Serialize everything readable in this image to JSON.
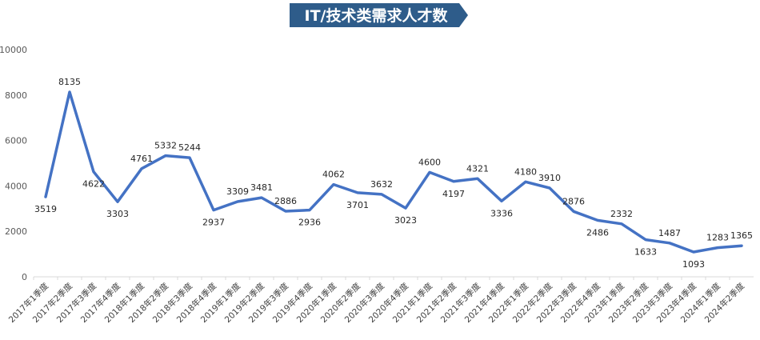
{
  "chart_data": {
    "type": "line",
    "title": "IT/技术类需求人才数",
    "xlabel": "",
    "ylabel": "",
    "ylim": [
      0,
      10000
    ],
    "yticks": [
      0,
      2000,
      4000,
      6000,
      8000,
      10000
    ],
    "grid": false,
    "legend": "none",
    "categories": [
      "2017年1季度",
      "2017年2季度",
      "2017年3季度",
      "2017年4季度",
      "2018年1季度",
      "2018年2季度",
      "2018年3季度",
      "2018年4季度",
      "2019年1季度",
      "2019年2季度",
      "2019年3季度",
      "2019年4季度",
      "2020年1季度",
      "2020年2季度",
      "2020年3季度",
      "2020年4季度",
      "2021年1季度",
      "2021年2季度",
      "2021年3季度",
      "2021年4季度",
      "2022年1季度",
      "2022年2季度",
      "2022年3季度",
      "2022年4季度",
      "2023年1季度",
      "2023年2季度",
      "2023年3季度",
      "2023年4季度",
      "2024年1季度",
      "2024年2季度"
    ],
    "series": [
      {
        "values": [
          3519,
          8135,
          4622,
          3303,
          4761,
          5332,
          5244,
          2937,
          3309,
          3481,
          2886,
          2936,
          4062,
          3701,
          3632,
          3023,
          4600,
          4197,
          4321,
          3336,
          4180,
          3910,
          2876,
          2486,
          2332,
          1633,
          1487,
          1093,
          1283,
          1365
        ],
        "label_position": [
          "below",
          "above",
          "below",
          "below",
          "above",
          "above",
          "above",
          "below",
          "above",
          "above",
          "above",
          "below",
          "above",
          "below",
          "above",
          "below",
          "above",
          "below",
          "above",
          "below",
          "above",
          "above",
          "above",
          "below",
          "above",
          "below",
          "above",
          "below",
          "above",
          "above"
        ]
      }
    ],
    "colors": {
      "line": "#4472C4",
      "title_banner": "#2E5C8A",
      "axis": "#D9D9D9"
    }
  }
}
